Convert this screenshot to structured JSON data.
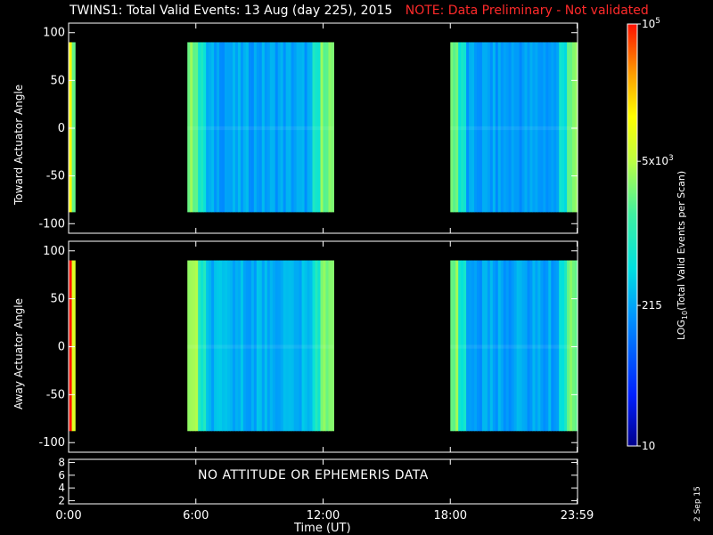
{
  "header": {
    "title": "TWINS1: Total Valid Events: 13 Aug (day 225), 2015",
    "note": "NOTE: Data Preliminary - Not validated",
    "note_color": "#ff2a2a"
  },
  "chart_data": [
    {
      "type": "heatmap",
      "ylabel": "Toward Actuator Angle",
      "xlim": [
        0,
        24
      ],
      "ylim": [
        -110,
        110
      ],
      "yticks": [
        -100,
        -50,
        0,
        50,
        100
      ],
      "data_y_range": [
        -88,
        90
      ],
      "segments": [
        {
          "x_start": 0.0,
          "x_end": 0.3,
          "level": 0.55
        },
        {
          "x_start": 5.6,
          "x_end": 12.5,
          "level": 0.33
        },
        {
          "x_start": 18.0,
          "x_end": 24.0,
          "level": 0.32
        }
      ]
    },
    {
      "type": "heatmap",
      "ylabel": "Away Actuator Angle",
      "xlim": [
        0,
        24
      ],
      "ylim": [
        -110,
        110
      ],
      "yticks": [
        -100,
        -50,
        0,
        50,
        100
      ],
      "data_y_range": [
        -88,
        90
      ],
      "segments": [
        {
          "x_start": 0.0,
          "x_end": 0.3,
          "level": 0.75
        },
        {
          "x_start": 5.6,
          "x_end": 12.5,
          "level": 0.35
        },
        {
          "x_start": 18.0,
          "x_end": 24.0,
          "level": 0.33
        }
      ]
    },
    {
      "type": "line",
      "ylim": [
        1.5,
        8.5
      ],
      "yticks": [
        2,
        4,
        6,
        8
      ],
      "message": "NO ATTITUDE OR EPHEMERIS DATA"
    }
  ],
  "x_axis": {
    "label": "Time (UT)",
    "ticks": [
      {
        "value": 0,
        "label": "0:00"
      },
      {
        "value": 6,
        "label": "6:00"
      },
      {
        "value": 12,
        "label": "12:00"
      },
      {
        "value": 18,
        "label": "18:00"
      },
      {
        "value": 23.98,
        "label": "23:59"
      }
    ]
  },
  "colorbar": {
    "label": "LOG10(Total Valid Events per Scan)",
    "label_main": "LOG",
    "label_sub": "10",
    "label_rest": "(Total Valid Events per Scan)",
    "scale": "log",
    "range": [
      10,
      100000
    ],
    "ticks": [
      {
        "value": 10,
        "label": "10"
      },
      {
        "value": 215,
        "label": "215"
      },
      {
        "value": 5000,
        "label": "5x10^3",
        "base": "5x10",
        "exp": "3"
      },
      {
        "value": 100000,
        "label": "10^5",
        "base": "10",
        "exp": "5"
      }
    ]
  },
  "footer": {
    "datestamp": "2 Sep 15"
  }
}
